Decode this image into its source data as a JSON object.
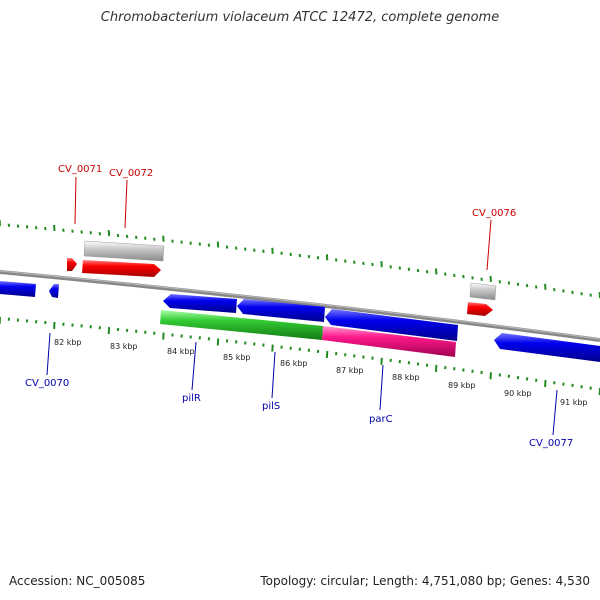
{
  "title": "Chromobacterium violaceum ATCC 12472, complete genome",
  "footer": {
    "accession": "Accession: NC_005085",
    "summary": "Topology: circular; Length: 4,751,080 bp; Genes: 4,530"
  },
  "scale_labels": [
    "82 kbp",
    "83 kbp",
    "84 kbp",
    "85 kbp",
    "86 kbp",
    "87 kbp",
    "88 kbp",
    "89 kbp",
    "90 kbp",
    "91 kbp"
  ],
  "gene_labels": [
    "CV_0071",
    "CV_0072",
    "CV_0076",
    "CV_0070",
    "pilR",
    "pilS",
    "parC",
    "CV_0077"
  ],
  "colors": {
    "forward_label": "#cc0000",
    "reverse_label": "#0000aa",
    "forward_gene": "#ff0000",
    "reverse_gene": "#0000ee",
    "rna_gene": "#c8c8c8",
    "green_feature": "#33cc33",
    "pink_feature": "#ff1a8c",
    "backbone": "#888888",
    "ticks": "#228b22"
  }
}
